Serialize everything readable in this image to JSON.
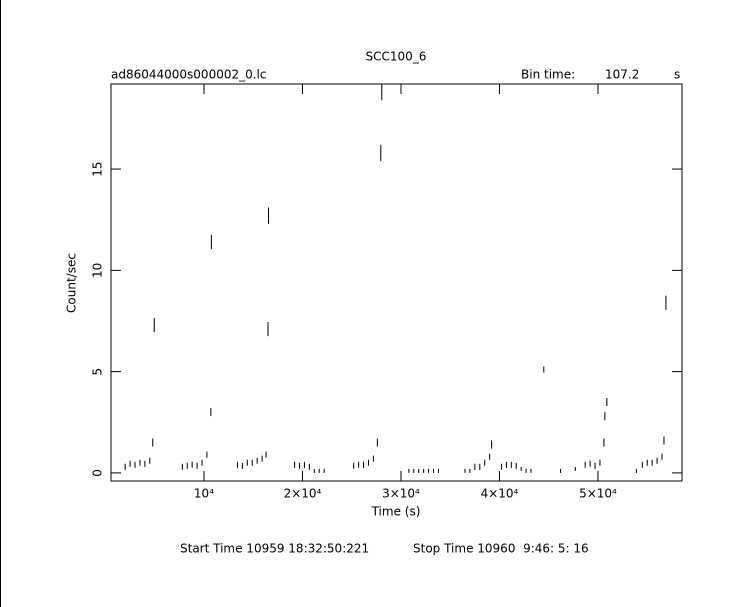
{
  "chart_data": {
    "type": "scatter",
    "title": "SCC100_6",
    "subtitle": "ad86044000s000002_0.lc",
    "bin_time_label": "Bin time:",
    "bin_time": 107.2,
    "bin_time_unit": "s",
    "x_label": "Time (s)",
    "y_label": "Count/sec",
    "start_time": "Start Time 10959 18:32:50:221",
    "stop_time": "Stop Time 10960  9:46: 5: 16",
    "xlim": [
      560,
      58530
    ],
    "ylim": [
      -0.4,
      19.2
    ],
    "xticks": [
      {
        "value": 10000,
        "label": "10⁴"
      },
      {
        "value": 20000,
        "label": "2×10⁴"
      },
      {
        "value": 30000,
        "label": "3×10⁴"
      },
      {
        "value": 40000,
        "label": "4×10⁴"
      },
      {
        "value": 50000,
        "label": "5×10⁴"
      }
    ],
    "yticks": [
      0,
      5,
      10,
      15
    ],
    "color": "#000000",
    "series": [
      {
        "x": [
          2000,
          2500,
          3000,
          3500,
          4000,
          4500,
          4800,
          4950,
          7800,
          8300,
          8800,
          9300,
          9800,
          10300,
          10700,
          10750,
          13400,
          13900,
          14400,
          14900,
          15400,
          15900,
          16300,
          16500,
          16550,
          19200,
          19700,
          20200,
          20700,
          21200,
          21700,
          22200,
          25200,
          25700,
          26200,
          26700,
          27200,
          27600,
          27950,
          28050,
          30800,
          31300,
          31800,
          32300,
          32800,
          33300,
          33800,
          36500,
          37000,
          37500,
          38000,
          38500,
          39000,
          39200,
          40200,
          40700,
          41200,
          41700,
          42200,
          42700,
          43200,
          44500,
          46200,
          47700,
          48700,
          49200,
          49700,
          50200,
          50600,
          50700,
          50900,
          53900,
          54500,
          55000,
          55500,
          56000,
          56500,
          56700,
          56900
        ],
        "values": [
          0.3,
          0.45,
          0.4,
          0.5,
          0.45,
          0.6,
          1.5,
          7.3,
          0.3,
          0.35,
          0.4,
          0.35,
          0.5,
          0.9,
          3.0,
          11.4,
          0.4,
          0.35,
          0.5,
          0.5,
          0.6,
          0.7,
          0.9,
          7.1,
          12.7,
          0.4,
          0.35,
          0.4,
          0.3,
          0.1,
          0.1,
          0.1,
          0.35,
          0.4,
          0.4,
          0.5,
          0.7,
          1.5,
          15.8,
          18.8,
          0.1,
          0.1,
          0.1,
          0.1,
          0.1,
          0.1,
          0.1,
          0.1,
          0.1,
          0.3,
          0.3,
          0.5,
          0.8,
          1.4,
          0.3,
          0.4,
          0.4,
          0.35,
          0.2,
          0.1,
          0.1,
          5.1,
          0.1,
          0.2,
          0.4,
          0.45,
          0.35,
          0.5,
          1.5,
          2.8,
          3.5,
          0.1,
          0.4,
          0.5,
          0.5,
          0.6,
          0.8,
          1.6,
          8.4
        ],
        "errors": [
          0.15,
          0.15,
          0.15,
          0.15,
          0.15,
          0.15,
          0.2,
          0.35,
          0.15,
          0.15,
          0.15,
          0.15,
          0.15,
          0.15,
          0.2,
          0.35,
          0.15,
          0.15,
          0.15,
          0.15,
          0.15,
          0.15,
          0.15,
          0.35,
          0.4,
          0.15,
          0.15,
          0.15,
          0.15,
          0.1,
          0.1,
          0.1,
          0.15,
          0.15,
          0.15,
          0.15,
          0.15,
          0.2,
          0.4,
          0.4,
          0.1,
          0.1,
          0.1,
          0.1,
          0.1,
          0.1,
          0.1,
          0.1,
          0.1,
          0.15,
          0.15,
          0.15,
          0.15,
          0.2,
          0.15,
          0.15,
          0.15,
          0.15,
          0.1,
          0.1,
          0.1,
          0.15,
          0.1,
          0.1,
          0.15,
          0.15,
          0.15,
          0.15,
          0.2,
          0.2,
          0.2,
          0.1,
          0.15,
          0.15,
          0.15,
          0.15,
          0.15,
          0.2,
          0.35
        ]
      }
    ]
  }
}
